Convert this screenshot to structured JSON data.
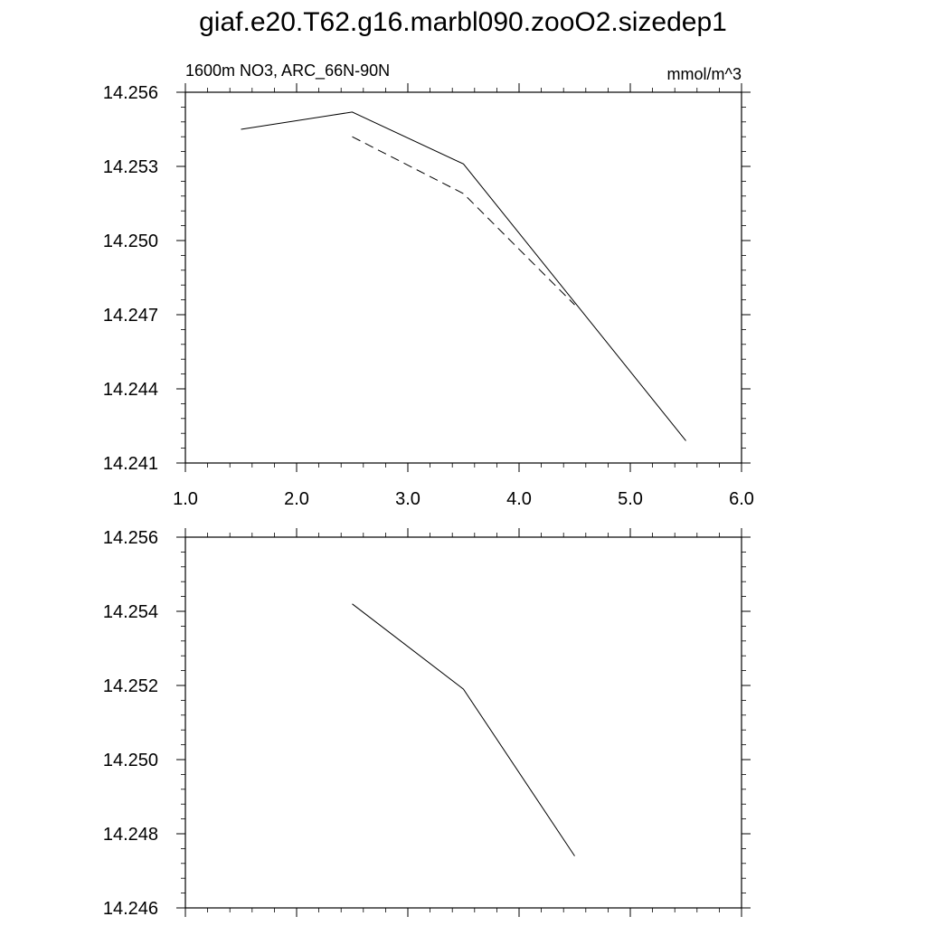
{
  "title": "giaf.e20.T62.g16.marbl090.zooO2.sizedep1",
  "chart_data": [
    {
      "type": "line",
      "left_label": "1600m NO3, ARC_66N-90N",
      "right_label": "mmol/m^3",
      "xlim": [
        1.0,
        6.0
      ],
      "ylim": [
        14.241,
        14.256
      ],
      "xticks": [
        "1.0",
        "2.0",
        "3.0",
        "4.0",
        "5.0",
        "6.0"
      ],
      "yticks": [
        "14.241",
        "14.244",
        "14.247",
        "14.250",
        "14.253",
        "14.256"
      ],
      "series": [
        {
          "style": "solid",
          "color": "#000000",
          "x": [
            1.5,
            2.5,
            3.5,
            4.5,
            5.5
          ],
          "y": [
            14.2545,
            14.2552,
            14.2531,
            14.2475,
            14.2419
          ]
        },
        {
          "style": "dashed",
          "color": "#000000",
          "x": [
            2.5,
            3.5,
            4.5
          ],
          "y": [
            14.2542,
            14.2519,
            14.2474
          ]
        }
      ]
    },
    {
      "type": "line",
      "xlim": [
        1.0,
        6.0
      ],
      "ylim": [
        14.246,
        14.256
      ],
      "yticks": [
        "14.246",
        "14.248",
        "14.250",
        "14.252",
        "14.254",
        "14.256"
      ],
      "series": [
        {
          "style": "solid",
          "color": "#000000",
          "x": [
            2.5,
            3.5,
            4.5
          ],
          "y": [
            14.2542,
            14.2519,
            14.2474
          ]
        }
      ]
    }
  ]
}
